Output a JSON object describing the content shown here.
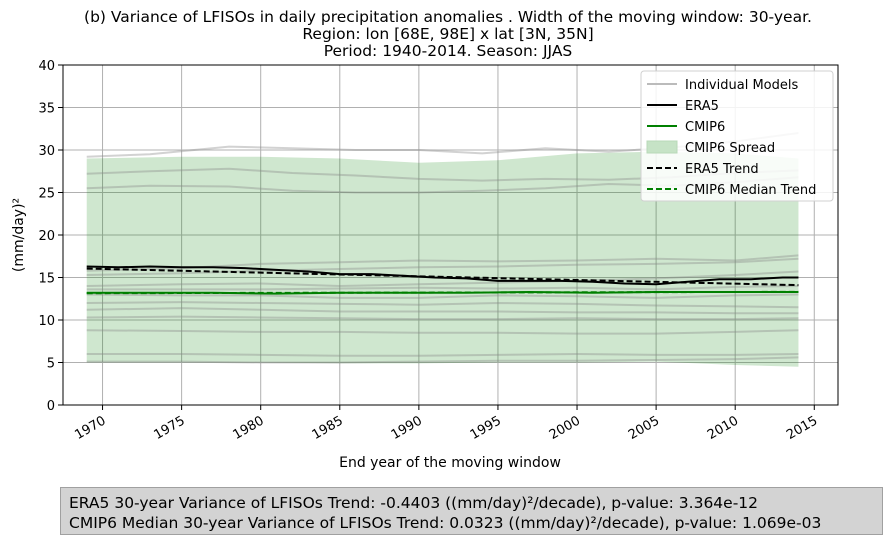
{
  "chart_data": {
    "type": "line",
    "title": [
      "(b) Variance of LFISOs in daily precipitation anomalies . Width of the moving window: 30-year.",
      "Region: lon [68E, 98E] x lat [3N, 35N]",
      "Period: 1940-2014. Season: JJAS"
    ],
    "xlabel": "End year of the moving window",
    "ylabel": "(mm/day)²",
    "xlim": [
      1967.5,
      2016.5
    ],
    "ylim": [
      0,
      40
    ],
    "xticks": [
      1970,
      1975,
      1980,
      1985,
      1990,
      1995,
      2000,
      2005,
      2010,
      2015
    ],
    "yticks": [
      0,
      5,
      10,
      15,
      20,
      25,
      30,
      35,
      40
    ],
    "grid": true,
    "legend_position": "upper-right",
    "legend": [
      {
        "label": "Individual Models",
        "color": "#bbbbbb",
        "style": "solid"
      },
      {
        "label": "ERA5",
        "color": "#000000",
        "style": "solid"
      },
      {
        "label": "CMIP6",
        "color": "#008000",
        "style": "solid"
      },
      {
        "label": "CMIP6 Spread",
        "color": "#c6e3c6",
        "style": "patch"
      },
      {
        "label": "ERA5 Trend",
        "color": "#000000",
        "style": "dashed"
      },
      {
        "label": "CMIP6 Median Trend",
        "color": "#008000",
        "style": "dashed"
      }
    ],
    "spread": {
      "x": [
        1969,
        1975,
        1980,
        1985,
        1990,
        1995,
        2000,
        2005,
        2010,
        2014
      ],
      "low": [
        5.0,
        5.0,
        5.0,
        4.9,
        4.9,
        5.0,
        5.0,
        5.1,
        4.7,
        4.5
      ],
      "high": [
        29.0,
        29.2,
        29.2,
        29.0,
        28.5,
        28.8,
        29.6,
        29.8,
        29.6,
        29.0
      ]
    },
    "individual_models": [
      {
        "x": [
          1969,
          1973,
          1978,
          1982,
          1986,
          1990,
          1994,
          1998,
          2002,
          2006,
          2010,
          2014
        ],
        "values": [
          29.2,
          29.5,
          30.4,
          30.2,
          30.0,
          30.0,
          29.6,
          30.2,
          29.8,
          30.3,
          31.0,
          32.0
        ]
      },
      {
        "x": [
          1969,
          1973,
          1978,
          1982,
          1986,
          1990,
          1994,
          1998,
          2002,
          2006,
          2010,
          2014
        ],
        "values": [
          27.2,
          27.5,
          27.8,
          27.3,
          27.0,
          26.6,
          26.4,
          26.6,
          26.5,
          26.8,
          27.3,
          27.6
        ]
      },
      {
        "x": [
          1969,
          1973,
          1978,
          1982,
          1986,
          1990,
          1994,
          1998,
          2002,
          2006,
          2010,
          2014
        ],
        "values": [
          25.5,
          25.8,
          25.7,
          25.2,
          25.0,
          25.0,
          25.2,
          25.5,
          26.0,
          25.8,
          26.2,
          26.8
        ]
      },
      {
        "x": [
          1969,
          1975,
          1980,
          1985,
          1990,
          1995,
          2000,
          2005,
          2010,
          2014
        ],
        "values": [
          15.8,
          16.1,
          16.6,
          16.8,
          17.0,
          16.9,
          17.0,
          17.2,
          17.0,
          17.6
        ]
      },
      {
        "x": [
          1969,
          1975,
          1980,
          1985,
          1990,
          1995,
          2000,
          2005,
          2010,
          2014
        ],
        "values": [
          15.3,
          15.5,
          15.8,
          16.0,
          16.2,
          16.3,
          16.5,
          16.6,
          16.8,
          17.2
        ]
      },
      {
        "x": [
          1969,
          1975,
          1980,
          1985,
          1990,
          1995,
          2000,
          2005,
          2010,
          2014
        ],
        "values": [
          14.0,
          14.2,
          14.3,
          14.0,
          14.2,
          14.4,
          14.6,
          14.9,
          15.3,
          15.7
        ]
      },
      {
        "x": [
          1969,
          1975,
          1980,
          1985,
          1990,
          1995,
          2000,
          2005,
          2010,
          2014
        ],
        "values": [
          13.6,
          13.6,
          13.6,
          13.7,
          13.8,
          13.7,
          13.8,
          13.6,
          13.9,
          14.0
        ]
      },
      {
        "x": [
          1969,
          1975,
          1980,
          1985,
          1990,
          1995,
          2000,
          2005,
          2010,
          2014
        ],
        "values": [
          13.0,
          12.9,
          12.9,
          12.6,
          12.6,
          12.9,
          12.8,
          12.6,
          12.9,
          13.0
        ]
      },
      {
        "x": [
          1969,
          1975,
          1980,
          1985,
          1990,
          1995,
          2000,
          2005,
          2010,
          2014
        ],
        "values": [
          12.0,
          12.1,
          12.0,
          11.9,
          11.8,
          12.0,
          11.9,
          11.7,
          11.6,
          11.5
        ]
      },
      {
        "x": [
          1969,
          1975,
          1980,
          1985,
          1990,
          1995,
          2000,
          2005,
          2010,
          2014
        ],
        "values": [
          11.2,
          11.4,
          11.2,
          11.0,
          11.0,
          11.0,
          10.9,
          10.9,
          10.8,
          10.8
        ]
      },
      {
        "x": [
          1969,
          1975,
          1980,
          1985,
          1990,
          1995,
          2000,
          2005,
          2010,
          2014
        ],
        "values": [
          10.3,
          10.4,
          10.3,
          10.2,
          10.1,
          10.1,
          10.2,
          10.1,
          10.1,
          10.2
        ]
      },
      {
        "x": [
          1969,
          1975,
          1980,
          1985,
          1990,
          1995,
          2000,
          2005,
          2010,
          2014
        ],
        "values": [
          8.8,
          8.7,
          8.6,
          8.6,
          8.5,
          8.5,
          8.4,
          8.4,
          8.6,
          8.8
        ]
      },
      {
        "x": [
          1969,
          1975,
          1980,
          1985,
          1990,
          1995,
          2000,
          2005,
          2010,
          2014
        ],
        "values": [
          6.0,
          6.0,
          5.9,
          5.8,
          5.8,
          5.9,
          6.0,
          5.9,
          5.9,
          6.0
        ]
      },
      {
        "x": [
          1969,
          1975,
          1980,
          1985,
          1990,
          1995,
          2000,
          2005,
          2010,
          2014
        ],
        "values": [
          5.1,
          5.1,
          5.0,
          5.0,
          5.1,
          5.2,
          5.2,
          5.3,
          5.4,
          5.6
        ]
      }
    ],
    "era5": {
      "x": [
        1969,
        1971,
        1973,
        1975,
        1977,
        1979,
        1981,
        1983,
        1985,
        1987,
        1989,
        1991,
        1993,
        1995,
        1997,
        1999,
        2001,
        2003,
        2005,
        2007,
        2009,
        2011,
        2013,
        2014
      ],
      "values": [
        16.3,
        16.2,
        16.3,
        16.2,
        16.2,
        16.1,
        15.9,
        15.7,
        15.4,
        15.4,
        15.2,
        15.0,
        14.9,
        14.6,
        14.6,
        14.6,
        14.5,
        14.3,
        14.2,
        14.5,
        14.8,
        14.8,
        15.0,
        15.0
      ]
    },
    "cmip6": {
      "x": [
        1969,
        1973,
        1977,
        1981,
        1985,
        1989,
        1993,
        1997,
        2001,
        2005,
        2009,
        2014
      ],
      "values": [
        13.2,
        13.2,
        13.2,
        13.1,
        13.2,
        13.2,
        13.2,
        13.3,
        13.2,
        13.3,
        13.3,
        13.3
      ]
    },
    "era5_trend": {
      "x": [
        1969,
        2014
      ],
      "values": [
        16.05,
        14.1
      ]
    },
    "cmip6_trend": {
      "x": [
        1969,
        2014
      ],
      "values": [
        13.15,
        13.31
      ]
    }
  },
  "stats": {
    "line1": "ERA5 30-year Variance of LFISOs Trend: -0.4403 ((mm/day)²/decade), p-value: 3.364e-12",
    "line2": "CMIP6 Median 30-year Variance of LFISOs Trend: 0.0323 ((mm/day)²/decade), p-value: 1.069e-03"
  }
}
